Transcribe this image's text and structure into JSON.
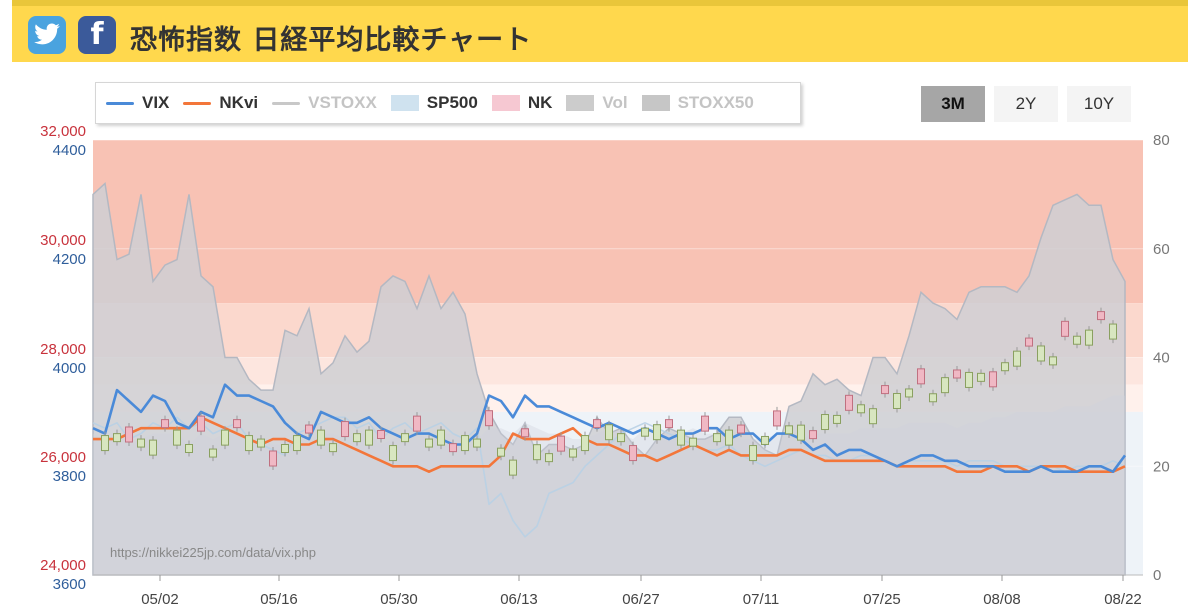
{
  "header": {
    "title": "恐怖指数 日経平均比較チャート",
    "twitter_icon": "twitter-bird-icon",
    "facebook_icon": "facebook-f-icon"
  },
  "legend": [
    {
      "label": "VIX",
      "kind": "line",
      "color": "#4a8ad8",
      "muted": false
    },
    {
      "label": "NKvi",
      "kind": "line",
      "color": "#f3763a",
      "muted": false
    },
    {
      "label": "VSTOXX",
      "kind": "line",
      "color": "#c8c8c8",
      "muted": true
    },
    {
      "label": "SP500",
      "kind": "box",
      "color": "#cfe2ef",
      "muted": false
    },
    {
      "label": "NK",
      "kind": "box",
      "color": "#f6c8d2",
      "muted": false
    },
    {
      "label": "Vol",
      "kind": "box",
      "color": "#cccccc",
      "muted": true
    },
    {
      "label": "STOXX50",
      "kind": "box",
      "color": "#c6c6c6",
      "muted": true
    }
  ],
  "range_buttons": [
    {
      "label": "3M",
      "active": true
    },
    {
      "label": "2Y",
      "active": false
    },
    {
      "label": "10Y",
      "active": false
    }
  ],
  "watermark": "https://nikkei225jp.com/data/vix.php",
  "chart_data": {
    "type": "line",
    "x_ticks": [
      "05/02",
      "05/16",
      "05/30",
      "06/13",
      "06/27",
      "07/11",
      "07/25",
      "08/08",
      "08/22"
    ],
    "left_axis_nk": {
      "ticks": [
        "32,000",
        "30,000",
        "28,000",
        "26,000",
        "24,000"
      ],
      "range": [
        24000,
        32000
      ],
      "color": "#c8323c"
    },
    "left_axis_sp500": {
      "ticks": [
        "4400",
        "4200",
        "4000",
        "3800",
        "3600"
      ],
      "range": [
        3600,
        4400
      ],
      "color": "#2f5e9b"
    },
    "right_axis_volatility": {
      "ticks": [
        "80",
        "60",
        "40",
        "20",
        "0"
      ],
      "range": [
        0,
        80
      ]
    },
    "series": [
      {
        "name": "VIX",
        "axis": "right",
        "color": "#4a8ad8",
        "values": [
          27,
          26,
          34,
          32,
          30,
          33,
          32,
          28,
          27,
          30,
          29,
          35,
          33,
          33,
          32,
          31,
          28,
          26,
          25,
          30,
          29,
          28,
          28,
          29,
          27,
          26,
          25,
          26,
          26,
          25,
          24,
          24,
          26,
          33,
          32,
          29,
          33,
          31,
          31,
          30,
          29,
          28,
          27,
          28,
          27,
          26,
          27,
          26,
          25,
          26,
          26,
          27,
          27,
          25,
          26,
          26,
          24,
          26,
          26,
          25,
          23,
          24,
          22,
          23,
          23,
          22,
          21,
          20,
          21,
          22,
          22,
          21,
          21,
          20,
          20,
          20,
          19,
          19,
          19,
          20,
          19,
          19,
          19,
          20,
          20,
          19,
          22
        ]
      },
      {
        "name": "NKvi",
        "axis": "right",
        "color": "#f3763a",
        "values": [
          25,
          25,
          25,
          26,
          27,
          27,
          27,
          27,
          27,
          29,
          28,
          27,
          26,
          25,
          24,
          25,
          25,
          24,
          24,
          25,
          25,
          24,
          23,
          22,
          21,
          20,
          20,
          20,
          19,
          20,
          20,
          20,
          20,
          20,
          22,
          26,
          25,
          25,
          25,
          26,
          27,
          25,
          24,
          24,
          23,
          22,
          22,
          21,
          22,
          23,
          24,
          23,
          22,
          23,
          22,
          22,
          22,
          22,
          23,
          23,
          22,
          21,
          21,
          21,
          21,
          21,
          21,
          20,
          20,
          20,
          20,
          20,
          19,
          19,
          19,
          20,
          20,
          20,
          19,
          20,
          20,
          20,
          19,
          19,
          19,
          19,
          20
        ]
      },
      {
        "name": "VSTOXX",
        "axis": "right",
        "color": "#b8d0e4",
        "values": [
          28,
          27,
          28,
          25,
          26,
          28,
          27,
          29,
          27,
          28,
          26,
          27,
          28,
          25,
          24,
          23,
          22,
          26,
          27,
          28,
          29,
          29,
          27,
          28,
          25,
          27,
          28,
          26,
          27,
          28,
          26,
          25,
          27,
          13,
          15,
          10,
          7,
          9,
          15,
          16,
          17,
          20,
          22,
          24,
          26,
          27,
          28,
          27,
          26,
          25,
          24,
          23,
          23,
          24,
          22,
          21,
          20,
          21,
          22,
          23,
          22,
          22,
          21,
          21,
          22,
          22,
          21,
          20,
          21,
          21,
          21,
          21,
          20,
          21,
          21,
          21,
          20,
          20,
          20,
          20,
          20,
          19,
          20,
          20,
          20,
          21,
          20
        ]
      },
      {
        "name": "STOXX50",
        "axis": "right",
        "color": "#cfcfd4",
        "values": [
          70,
          72,
          58,
          59,
          70,
          54,
          57,
          58,
          70,
          55,
          53,
          40,
          40,
          36,
          34,
          34,
          45,
          44,
          49,
          37,
          39,
          44,
          41,
          43,
          53,
          55,
          54,
          49,
          55,
          49,
          52,
          48,
          37,
          30,
          26,
          24,
          28,
          22,
          24,
          24,
          23,
          24,
          29,
          26,
          27,
          24,
          22,
          25,
          27,
          26,
          25,
          25,
          26,
          29,
          29,
          25,
          23,
          22,
          31,
          32,
          37,
          35,
          36,
          34,
          33,
          40,
          40,
          37,
          44,
          52,
          50,
          49,
          47,
          52,
          53,
          53,
          53,
          52,
          55,
          62,
          68,
          69,
          70,
          68,
          68,
          58,
          54
        ]
      },
      {
        "name": "Vol",
        "axis": "right",
        "color": "#cdd2dc",
        "values": [
          26,
          25,
          26,
          24,
          25,
          26,
          26,
          26,
          24,
          26,
          25,
          26,
          26,
          25,
          25,
          24,
          24,
          25,
          25,
          26,
          26,
          25,
          26,
          26,
          24,
          25,
          26,
          26,
          25,
          26,
          26,
          25,
          25,
          27,
          27,
          26,
          28,
          27,
          26,
          26,
          25,
          25,
          26,
          27,
          26,
          25,
          27,
          27,
          26,
          26,
          27,
          26,
          26,
          26,
          25,
          25,
          25,
          26,
          26,
          25,
          26,
          26,
          26,
          26,
          27,
          27,
          27,
          27,
          28,
          28,
          28,
          28,
          27,
          28,
          28,
          29,
          29,
          30,
          30,
          30,
          30,
          31,
          31,
          31,
          32,
          33,
          33
        ]
      }
    ],
    "annotations": {
      "band_colors": [
        "#f8c2b4",
        "#fbd8cd",
        "#fde6df",
        "#fff1ec",
        "#eef3f8"
      ]
    }
  }
}
